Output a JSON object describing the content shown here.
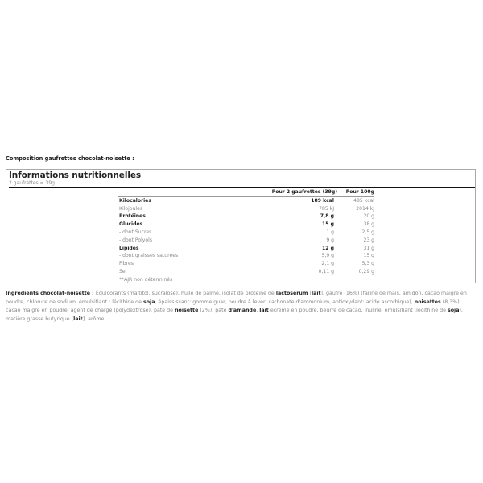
{
  "composition_title": "Composition gaufrettes chocolat-noisette :",
  "nutrition": {
    "title": "Informations nutritionnelles",
    "serving": "2 gaufrettes = 39g",
    "headers": [
      "",
      "Pour 2 gaufrettes (39g)",
      "Pour 100g"
    ],
    "rows": [
      {
        "name": "Kilocalories",
        "serving": "189 kcal",
        "per100": "485 kcal",
        "bold": true
      },
      {
        "name": "Kilojoules",
        "serving": "785 kJ",
        "per100": "2014 kJ",
        "bold": false
      },
      {
        "name": "Protéines",
        "serving": "7,8 g",
        "per100": "20 g",
        "bold": true
      },
      {
        "name": "Glucides",
        "serving": "15 g",
        "per100": "38 g",
        "bold": true
      },
      {
        "name": "- dont Sucres",
        "serving": "1 g",
        "per100": "2,5 g",
        "bold": false
      },
      {
        "name": "- dont Polyols",
        "serving": "9 g",
        "per100": "23 g",
        "bold": false
      },
      {
        "name": "Lipides",
        "serving": "12 g",
        "per100": "31 g",
        "bold": true
      },
      {
        "name": "- dont graisses saturées",
        "serving": "5,9 g",
        "per100": "15 g",
        "bold": false
      },
      {
        "name": "Fibres",
        "serving": "2,1 g",
        "per100": "5,3 g",
        "bold": false
      },
      {
        "name": "Sel",
        "serving": "0,11 g",
        "per100": "0,29 g",
        "bold": false
      }
    ],
    "footnote": "**AJR non déterminés"
  },
  "ingredients": [
    {
      "text": "Ingrédients chocolat-noisette : ",
      "bold": true
    },
    {
      "text": "Édulcorants (maltitol, sucralose), huile de palme, isolat de protéine de ",
      "bold": false
    },
    {
      "text": "lactosérum",
      "bold": true
    },
    {
      "text": " [",
      "bold": false
    },
    {
      "text": "lait",
      "bold": true
    },
    {
      "text": "], gaufre (16%) (farine de maïs, amidon, cacao maigre en poudre, chlorure de sodium, émulsifiant : lécithine de ",
      "bold": false
    },
    {
      "text": "soja",
      "bold": true
    },
    {
      "text": ", épaississant: gomme guar, poudre à lever: carbonate d'ammonium, antioxydant: acide ascorbique), ",
      "bold": false
    },
    {
      "text": "noisettes",
      "bold": true
    },
    {
      "text": " (8,3%), cacao maigre en poudre, agent de charge (polydextrose), pâte de ",
      "bold": false
    },
    {
      "text": "noisette",
      "bold": true
    },
    {
      "text": " (2%), pâte ",
      "bold": false
    },
    {
      "text": "d'amande",
      "bold": true
    },
    {
      "text": ", ",
      "bold": false
    },
    {
      "text": "lait",
      "bold": true
    },
    {
      "text": " écrémé en poudre, beurre de cacao, inuline, émulsifiant (lécithine de ",
      "bold": false
    },
    {
      "text": "soja",
      "bold": true
    },
    {
      "text": "), matière grasse butyrique [",
      "bold": false
    },
    {
      "text": "lait",
      "bold": true
    },
    {
      "text": "], arôme.",
      "bold": false
    }
  ]
}
